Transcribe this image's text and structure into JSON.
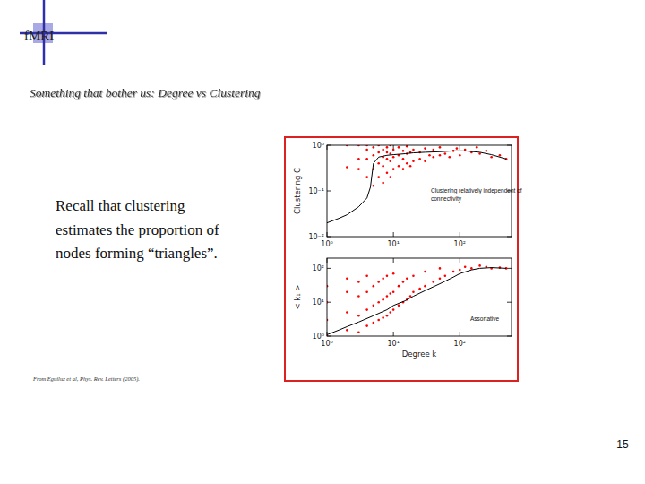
{
  "slide": {
    "logo": "fMRI",
    "title": "Something that bother us: Degree vs Clustering",
    "body": [
      "Recall that clustering",
      "estimates the proportion of",
      "nodes forming “triangles”."
    ],
    "source": "From Eguiluz et al, Phys. Rev. Letters (2005).",
    "page": "15"
  },
  "chart_data": [
    {
      "type": "scatter",
      "y_label": "Clustering C",
      "annotation": [
        "Clustering relatively independent of",
        "connectivity"
      ],
      "log": true,
      "grid": false,
      "xlim": [
        1,
        600
      ],
      "ylim": [
        0.01,
        1
      ],
      "xticks": [
        {
          "value": 1,
          "label": "10⁰"
        },
        {
          "value": 10,
          "label": "10¹"
        },
        {
          "value": 100,
          "label": "10²"
        }
      ],
      "yticks": [
        {
          "value": 0.01,
          "label": "10⁻²"
        },
        {
          "value": 0.1,
          "label": "10⁻¹"
        },
        {
          "value": 1,
          "label": "10⁰"
        }
      ],
      "series": [
        {
          "type": "scatter",
          "color": "#ff0000",
          "marker": "dot",
          "x": [
            2,
            2,
            3,
            3,
            3,
            4,
            4,
            4,
            4,
            5,
            5,
            5,
            5,
            6,
            6,
            6,
            6,
            7,
            7,
            7,
            7,
            8,
            8,
            8,
            8,
            9,
            9,
            9,
            9,
            10,
            10,
            10,
            12,
            12,
            12,
            14,
            14,
            14,
            16,
            16,
            16,
            18,
            18,
            20,
            20,
            25,
            25,
            30,
            30,
            35,
            40,
            40,
            50,
            50,
            60,
            70,
            80,
            90,
            100,
            120,
            150,
            180,
            200,
            250,
            300,
            400,
            500
          ],
          "values": [
            1,
            0.33,
            0.3,
            1,
            0.5,
            0.2,
            0.5,
            0.8,
            1,
            0.13,
            0.3,
            0.6,
            0.9,
            0.2,
            0.4,
            0.7,
            1,
            0.15,
            0.35,
            0.55,
            0.8,
            0.25,
            0.5,
            0.7,
            0.9,
            0.2,
            0.45,
            0.65,
            1,
            0.3,
            0.55,
            0.8,
            0.35,
            0.6,
            0.9,
            0.3,
            0.5,
            0.75,
            0.4,
            0.65,
            0.95,
            0.35,
            0.7,
            0.45,
            0.8,
            0.5,
            0.7,
            0.45,
            0.85,
            0.6,
            0.55,
            0.8,
            0.6,
            0.9,
            0.65,
            0.55,
            0.75,
            0.85,
            0.6,
            0.8,
            0.7,
            0.9,
            0.65,
            0.75,
            0.55,
            0.6,
            0.5
          ]
        },
        {
          "type": "line",
          "color": "#000000",
          "line_style": "solid",
          "x": [
            1,
            1.5,
            2,
            3,
            4,
            4.5,
            5,
            6,
            8,
            10,
            15,
            20,
            30,
            50,
            80,
            120,
            200,
            300,
            500
          ],
          "values": [
            0.02,
            0.025,
            0.03,
            0.045,
            0.07,
            0.12,
            0.4,
            0.55,
            0.6,
            0.62,
            0.65,
            0.68,
            0.7,
            0.72,
            0.75,
            0.75,
            0.7,
            0.62,
            0.5
          ]
        }
      ]
    },
    {
      "type": "scatter",
      "x_label": "Degree k",
      "y_label": "< k₁ >",
      "annotation": [
        "Assortative"
      ],
      "log": true,
      "grid": false,
      "xlim": [
        1,
        600
      ],
      "ylim": [
        1,
        200
      ],
      "xticks": [
        {
          "value": 1,
          "label": "10⁰"
        },
        {
          "value": 10,
          "label": "10¹"
        },
        {
          "value": 100,
          "label": "10²"
        }
      ],
      "yticks": [
        {
          "value": 1,
          "label": "10⁰"
        },
        {
          "value": 10,
          "label": "10¹"
        },
        {
          "value": 100,
          "label": "10²"
        }
      ],
      "series": [
        {
          "type": "scatter",
          "color": "#ff0000",
          "marker": "dot",
          "x": [
            1,
            1,
            1,
            1,
            2,
            2,
            2,
            2,
            3,
            3,
            3,
            3,
            4,
            4,
            4,
            4,
            5,
            5,
            5,
            6,
            6,
            6,
            7,
            7,
            7,
            8,
            8,
            8,
            9,
            9,
            10,
            10,
            10,
            12,
            12,
            14,
            14,
            16,
            16,
            18,
            20,
            20,
            25,
            30,
            30,
            40,
            50,
            50,
            60,
            80,
            100,
            120,
            150,
            200,
            250,
            300,
            400,
            500
          ],
          "values": [
            1,
            3,
            10,
            30,
            1.5,
            5,
            20,
            50,
            1.3,
            4,
            15,
            40,
            2,
            6,
            20,
            60,
            2.5,
            8,
            30,
            3,
            10,
            40,
            3.5,
            12,
            50,
            4,
            15,
            60,
            5,
            18,
            6,
            20,
            70,
            8,
            30,
            10,
            40,
            12,
            50,
            15,
            20,
            60,
            25,
            30,
            80,
            40,
            50,
            100,
            60,
            80,
            90,
            110,
            100,
            120,
            110,
            100,
            105,
            100
          ]
        },
        {
          "type": "line",
          "color": "#000000",
          "line_style": "solid",
          "x": [
            1,
            1.5,
            2,
            3,
            5,
            8,
            10,
            15,
            20,
            30,
            50,
            80,
            100,
            150,
            200,
            300,
            500
          ],
          "values": [
            1.1,
            1.5,
            1.9,
            2.6,
            4,
            6,
            8,
            11,
            15,
            22,
            35,
            55,
            70,
            90,
            100,
            105,
            100
          ]
        }
      ]
    }
  ]
}
